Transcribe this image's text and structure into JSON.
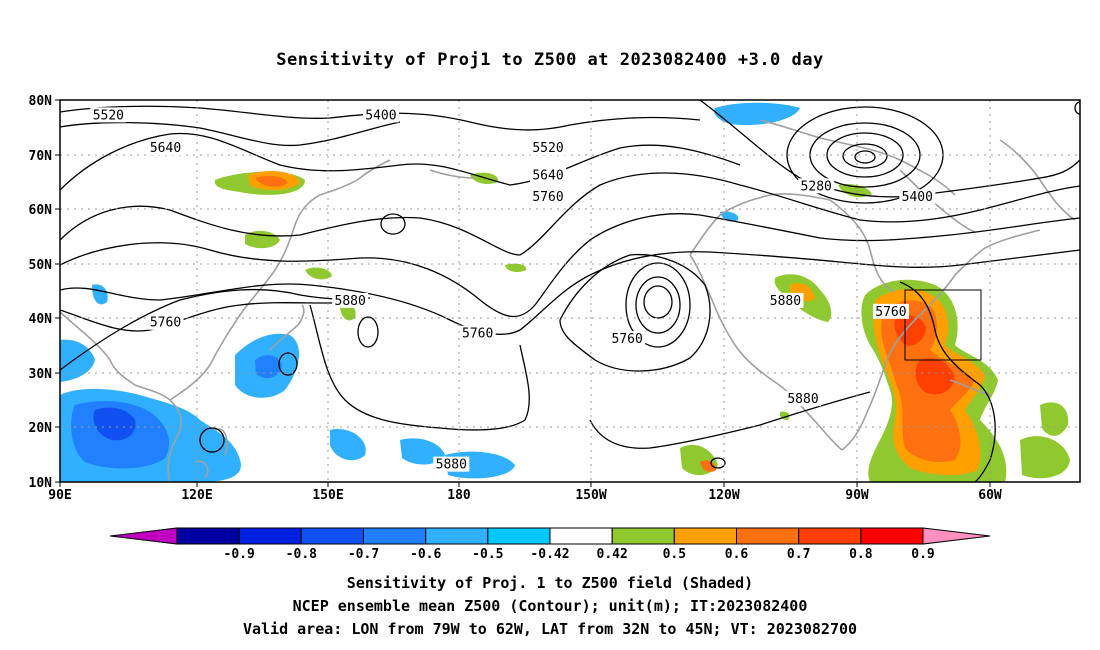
{
  "title": "Sensitivity of Proj1 to Z500 at 2023082400 +3.0 day",
  "axes": {
    "lon_ticks": [
      "90E",
      "120E",
      "150E",
      "180",
      "150W",
      "120W",
      "90W",
      "60W"
    ],
    "lat_ticks": [
      "80N",
      "70N",
      "60N",
      "50N",
      "40N",
      "30N",
      "20N",
      "10N"
    ]
  },
  "contour_labels": [
    {
      "text": "5520",
      "lon": 101,
      "lat": 77
    },
    {
      "text": "5400",
      "lon": 163,
      "lat": 77
    },
    {
      "text": "5640",
      "lon": 114,
      "lat": 71
    },
    {
      "text": "5520",
      "lon": -159,
      "lat": 71
    },
    {
      "text": "5640",
      "lon": -159,
      "lat": 66
    },
    {
      "text": "5280",
      "lon": -98,
      "lat": 64
    },
    {
      "text": "5760",
      "lon": -159,
      "lat": 62
    },
    {
      "text": "5400",
      "lon": -75,
      "lat": 62
    },
    {
      "text": "5880",
      "lon": 156,
      "lat": 43
    },
    {
      "text": "5880",
      "lon": -105,
      "lat": 43
    },
    {
      "text": "5760",
      "lon": -81,
      "lat": 41
    },
    {
      "text": "5760",
      "lon": 114,
      "lat": 39
    },
    {
      "text": "5760",
      "lon": -175,
      "lat": 37
    },
    {
      "text": "5760",
      "lon": -141,
      "lat": 36
    },
    {
      "text": "5880",
      "lon": -101,
      "lat": 25
    },
    {
      "text": "5880",
      "lon": 179,
      "lat": 13
    }
  ],
  "colorbar": {
    "labels": [
      "-0.9",
      "-0.8",
      "-0.7",
      "-0.6",
      "-0.5",
      "-0.42",
      "0.42",
      "0.5",
      "0.6",
      "0.7",
      "0.8",
      "0.9"
    ],
    "colors": [
      "#c000c0",
      "#0000a0",
      "#0020e0",
      "#1050f0",
      "#2080ff",
      "#30b0ff",
      "#00c8ff",
      "#ffffff",
      "#90c830",
      "#ffa000",
      "#ff7010",
      "#ff4000",
      "#ff0000",
      "#ff90c0"
    ]
  },
  "captions": {
    "line1": "Sensitivity of Proj. 1 to Z500 field (Shaded)",
    "line2": "NCEP ensemble mean Z500 (Contour); unit(m); IT:2023082400",
    "line3": "Valid area: LON from 79W to 62W, LAT from 32N to 45N; VT: 2023082700"
  }
}
